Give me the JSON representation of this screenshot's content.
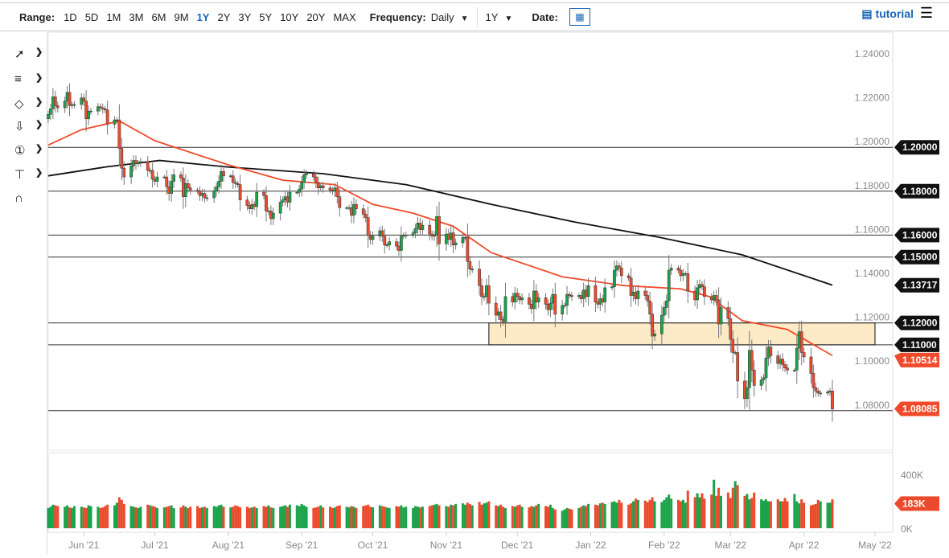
{
  "toolbar": {
    "range_label": "Range:",
    "ranges": [
      "1D",
      "5D",
      "1M",
      "3M",
      "6M",
      "9M",
      "1Y",
      "2Y",
      "3Y",
      "5Y",
      "10Y",
      "20Y",
      "MAX"
    ],
    "active_range": "1Y",
    "frequency_label": "Frequency:",
    "frequency_value": "Daily",
    "period_value": "1Y",
    "date_label": "Date:",
    "tutorial_label": "tutorial"
  },
  "left_tools": [
    "line-tool-icon",
    "fibonacci-tool-icon",
    "shape-tool-icon",
    "arrow-down-icon",
    "numbered-marker-icon",
    "measure-tool-icon",
    "magnet-icon"
  ],
  "chart_data": {
    "type": "candlestick",
    "x_range": [
      "2021-05-17",
      "2022-05-09"
    ],
    "x_ticks": [
      [
        "2021-06-01",
        "Jun '21"
      ],
      [
        "2021-07-01",
        "Jul '21"
      ],
      [
        "2021-08-01",
        "Aug '21"
      ],
      [
        "2021-09-01",
        "Sep '21"
      ],
      [
        "2021-10-01",
        "Oct '21"
      ],
      [
        "2021-11-01",
        "Nov '21"
      ],
      [
        "2021-12-01",
        "Dec '21"
      ],
      [
        "2022-01-01",
        "Jan '22"
      ],
      [
        "2022-02-01",
        "Feb '22"
      ],
      [
        "2022-03-01",
        "Mar '22"
      ],
      [
        "2022-04-01",
        "Apr '22"
      ],
      [
        "2022-05-01",
        "May '22"
      ]
    ],
    "y_range": [
      1.065,
      1.252
    ],
    "y_ticks": [
      "1.24000",
      "1.22000",
      "1.20000",
      "1.18000",
      "1.16000",
      "1.14000",
      "1.12000",
      "1.10000",
      "1.08000"
    ],
    "closes": [
      1.215,
      1.2175,
      1.223,
      1.219,
      1.218,
      1.221,
      1.225,
      1.219,
      1.2195,
      1.2195,
      1.2225,
      1.221,
      1.213,
      1.2165,
      1.2165,
      1.2185,
      1.218,
      1.2175,
      1.217,
      1.2105,
      1.2125,
      1.2125,
      1.1995,
      1.1905,
      1.1865,
      1.1915,
      1.194,
      1.1925,
      1.193,
      1.1935,
      1.1895,
      1.1895,
      1.1855,
      1.1845,
      1.1865,
      1.1865,
      1.182,
      1.179,
      1.1845,
      1.1875,
      1.186,
      1.1775,
      1.1835,
      1.1815,
      1.1805,
      1.18,
      1.178,
      1.179,
      1.177,
      1.177,
      1.18,
      1.182,
      1.1845,
      1.189,
      1.187,
      1.187,
      1.184,
      1.1835,
      1.183,
      1.176,
      1.1735,
      1.172,
      1.174,
      1.173,
      1.1795,
      1.178,
      1.171,
      1.171,
      1.1675,
      1.17,
      1.175,
      1.176,
      1.1775,
      1.175,
      1.1795,
      1.1795,
      1.181,
      1.184,
      1.1875,
      1.188,
      1.1865,
      1.184,
      1.1815,
      1.1825,
      1.1815,
      1.1805,
      1.18,
      1.1815,
      1.1775,
      1.1725,
      1.1725,
      1.1725,
      1.169,
      1.174,
      1.172,
      1.1695,
      1.168,
      1.16,
      1.158,
      1.1595,
      1.162,
      1.1595,
      1.1555,
      1.1555,
      1.157,
      1.155,
      1.153,
      1.1595,
      1.16,
      1.16,
      1.161,
      1.163,
      1.1655,
      1.1625,
      1.1645,
      1.1605,
      1.1595,
      1.16,
      1.1685,
      1.156,
      1.1605,
      1.158,
      1.161,
      1.1555,
      1.1565,
      1.159,
      1.159,
      1.148,
      1.1445,
      1.1445,
      1.137,
      1.132,
      1.132,
      1.137,
      1.129,
      1.1235,
      1.125,
      1.1215,
      1.1205,
      1.132,
      1.1295,
      1.1335,
      1.132,
      1.1305,
      1.1315,
      1.1285,
      1.1265,
      1.1345,
      1.1295,
      1.1315,
      1.1285,
      1.126,
      1.129,
      1.133,
      1.124,
      1.128,
      1.128,
      1.133,
      1.1325,
      1.132,
      1.1325,
      1.131,
      1.135,
      1.132,
      1.137,
      1.1295,
      1.1285,
      1.131,
      1.1295,
      1.136,
      1.1365,
      1.144,
      1.146,
      1.145,
      1.1415,
      1.1405,
      1.1325,
      1.134,
      1.131,
      1.1345,
      1.1325,
      1.13,
      1.124,
      1.114,
      1.115,
      1.1235,
      1.127,
      1.13,
      1.144,
      1.145,
      1.144,
      1.1415,
      1.1425,
      1.1425,
      1.1345,
      1.1305,
      1.136,
      1.1375,
      1.1365,
      1.132,
      1.1305,
      1.1325,
      1.1305,
      1.1195,
      1.127,
      1.122,
      1.1125,
      1.1065,
      1.1065,
      1.0935,
      1.0855,
      1.0905,
      1.1075,
      1.0985,
      1.0915,
      1.094,
      1.095,
      1.104,
      1.109,
      1.105,
      1.1015,
      1.1035,
      1.101,
      1.0995,
      1.0985,
      1.0985,
      1.1085,
      1.116,
      1.1065,
      1.1045,
      1.097,
      1.0905,
      1.089,
      1.088,
      1.088,
      1.0885,
      1.089,
      1.0808
    ],
    "volume_k": [
      150,
      160,
      175,
      170,
      165,
      160,
      170,
      155,
      150,
      165,
      160,
      155,
      150,
      170,
      165,
      160,
      150,
      155,
      165,
      175,
      170,
      190,
      230,
      210,
      180,
      165,
      160,
      155,
      150,
      160,
      175,
      170,
      165,
      160,
      150,
      155,
      160,
      165,
      170,
      150,
      155,
      170,
      160,
      150,
      160,
      165,
      150,
      155,
      160,
      150,
      165,
      160,
      170,
      175,
      160,
      155,
      160,
      170,
      165,
      155,
      160,
      150,
      155,
      160,
      150,
      165,
      160,
      170,
      155,
      150,
      160,
      165,
      170,
      160,
      175,
      170,
      165,
      180,
      170,
      160,
      150,
      155,
      160,
      170,
      155,
      160,
      150,
      155,
      165,
      170,
      160,
      155,
      165,
      160,
      150,
      165,
      170,
      175,
      160,
      155,
      170,
      165,
      160,
      155,
      150,
      165,
      160,
      170,
      155,
      160,
      150,
      165,
      160,
      155,
      160,
      165,
      170,
      175,
      180,
      170,
      165,
      160,
      175,
      170,
      180,
      185,
      175,
      190,
      180,
      170,
      195,
      175,
      185,
      190,
      200,
      170,
      165,
      175,
      160,
      150,
      165,
      160,
      170,
      175,
      160,
      155,
      165,
      160,
      170,
      180,
      165,
      160,
      175,
      150,
      140,
      130,
      140,
      150,
      145,
      140,
      150,
      160,
      170,
      165,
      180,
      175,
      170,
      185,
      190,
      180,
      195,
      200,
      190,
      210,
      190,
      175,
      185,
      200,
      220,
      210,
      205,
      195,
      210,
      230,
      200,
      195,
      210,
      230,
      250,
      220,
      210,
      200,
      210,
      190,
      280,
      230,
      260,
      230,
      260,
      220,
      250,
      360,
      240,
      300,
      240,
      265,
      225,
      300,
      350,
      320,
      240,
      255,
      215,
      225,
      265,
      215,
      205,
      215,
      200,
      200,
      215,
      200,
      200,
      225,
      200,
      255,
      200,
      185,
      215,
      190,
      170,
      175,
      180,
      210,
      200,
      190,
      190,
      215,
      200,
      180,
      183
    ],
    "volume_ticks": [
      "400K",
      "0K"
    ],
    "volume_last": "183K",
    "ma50": [
      [
        "2021-05-17",
        1.201
      ],
      [
        "2021-05-31",
        1.208
      ],
      [
        "2021-06-16",
        1.212
      ],
      [
        "2021-07-01",
        1.203
      ],
      [
        "2021-08-01",
        1.192
      ],
      [
        "2021-08-24",
        1.185
      ],
      [
        "2021-09-15",
        1.183
      ],
      [
        "2021-10-01",
        1.174
      ],
      [
        "2021-10-18",
        1.17
      ],
      [
        "2021-11-04",
        1.164
      ],
      [
        "2021-11-20",
        1.152
      ],
      [
        "2021-12-20",
        1.141
      ],
      [
        "2022-01-15",
        1.137
      ],
      [
        "2022-02-08",
        1.1355
      ],
      [
        "2022-02-20",
        1.132
      ],
      [
        "2022-03-06",
        1.121
      ],
      [
        "2022-03-25",
        1.117
      ],
      [
        "2022-04-13",
        1.1051
      ]
    ],
    "ma200": [
      [
        "2021-05-17",
        1.187
      ],
      [
        "2021-06-10",
        1.191
      ],
      [
        "2021-07-03",
        1.194
      ],
      [
        "2021-08-01",
        1.191
      ],
      [
        "2021-09-10",
        1.188
      ],
      [
        "2021-10-15",
        1.183
      ],
      [
        "2021-11-20",
        1.174
      ],
      [
        "2021-12-25",
        1.166
      ],
      [
        "2022-01-30",
        1.159
      ],
      [
        "2022-03-06",
        1.151
      ],
      [
        "2022-04-13",
        1.1372
      ]
    ],
    "horizontal_levels": [
      "1.20000",
      "1.18000",
      "1.16000",
      "1.15000",
      "1.12000",
      "1.11000",
      "1.08000"
    ],
    "zone": {
      "from_date": "2021-11-19",
      "to_date": "2022-05-01",
      "top": 1.12,
      "bottom": 1.11,
      "color": "#fdebc8"
    },
    "price_tags": [
      {
        "value": "1.20000",
        "color": "#111111"
      },
      {
        "value": "1.18000",
        "color": "#111111"
      },
      {
        "value": "1.16000",
        "color": "#111111"
      },
      {
        "value": "1.15000",
        "color": "#111111"
      },
      {
        "value": "1.13717",
        "color": "#111111"
      },
      {
        "value": "1.12000",
        "color": "#111111"
      },
      {
        "value": "1.11000",
        "color": "#111111"
      },
      {
        "value": "1.10514",
        "color": "#f04a2a"
      },
      {
        "value": "1.08085",
        "color": "#f04a2a"
      }
    ],
    "colors": {
      "up": "#1ba34a",
      "down": "#ec4a2c",
      "ma50": "#f04a2a",
      "ma200": "#111111"
    }
  }
}
